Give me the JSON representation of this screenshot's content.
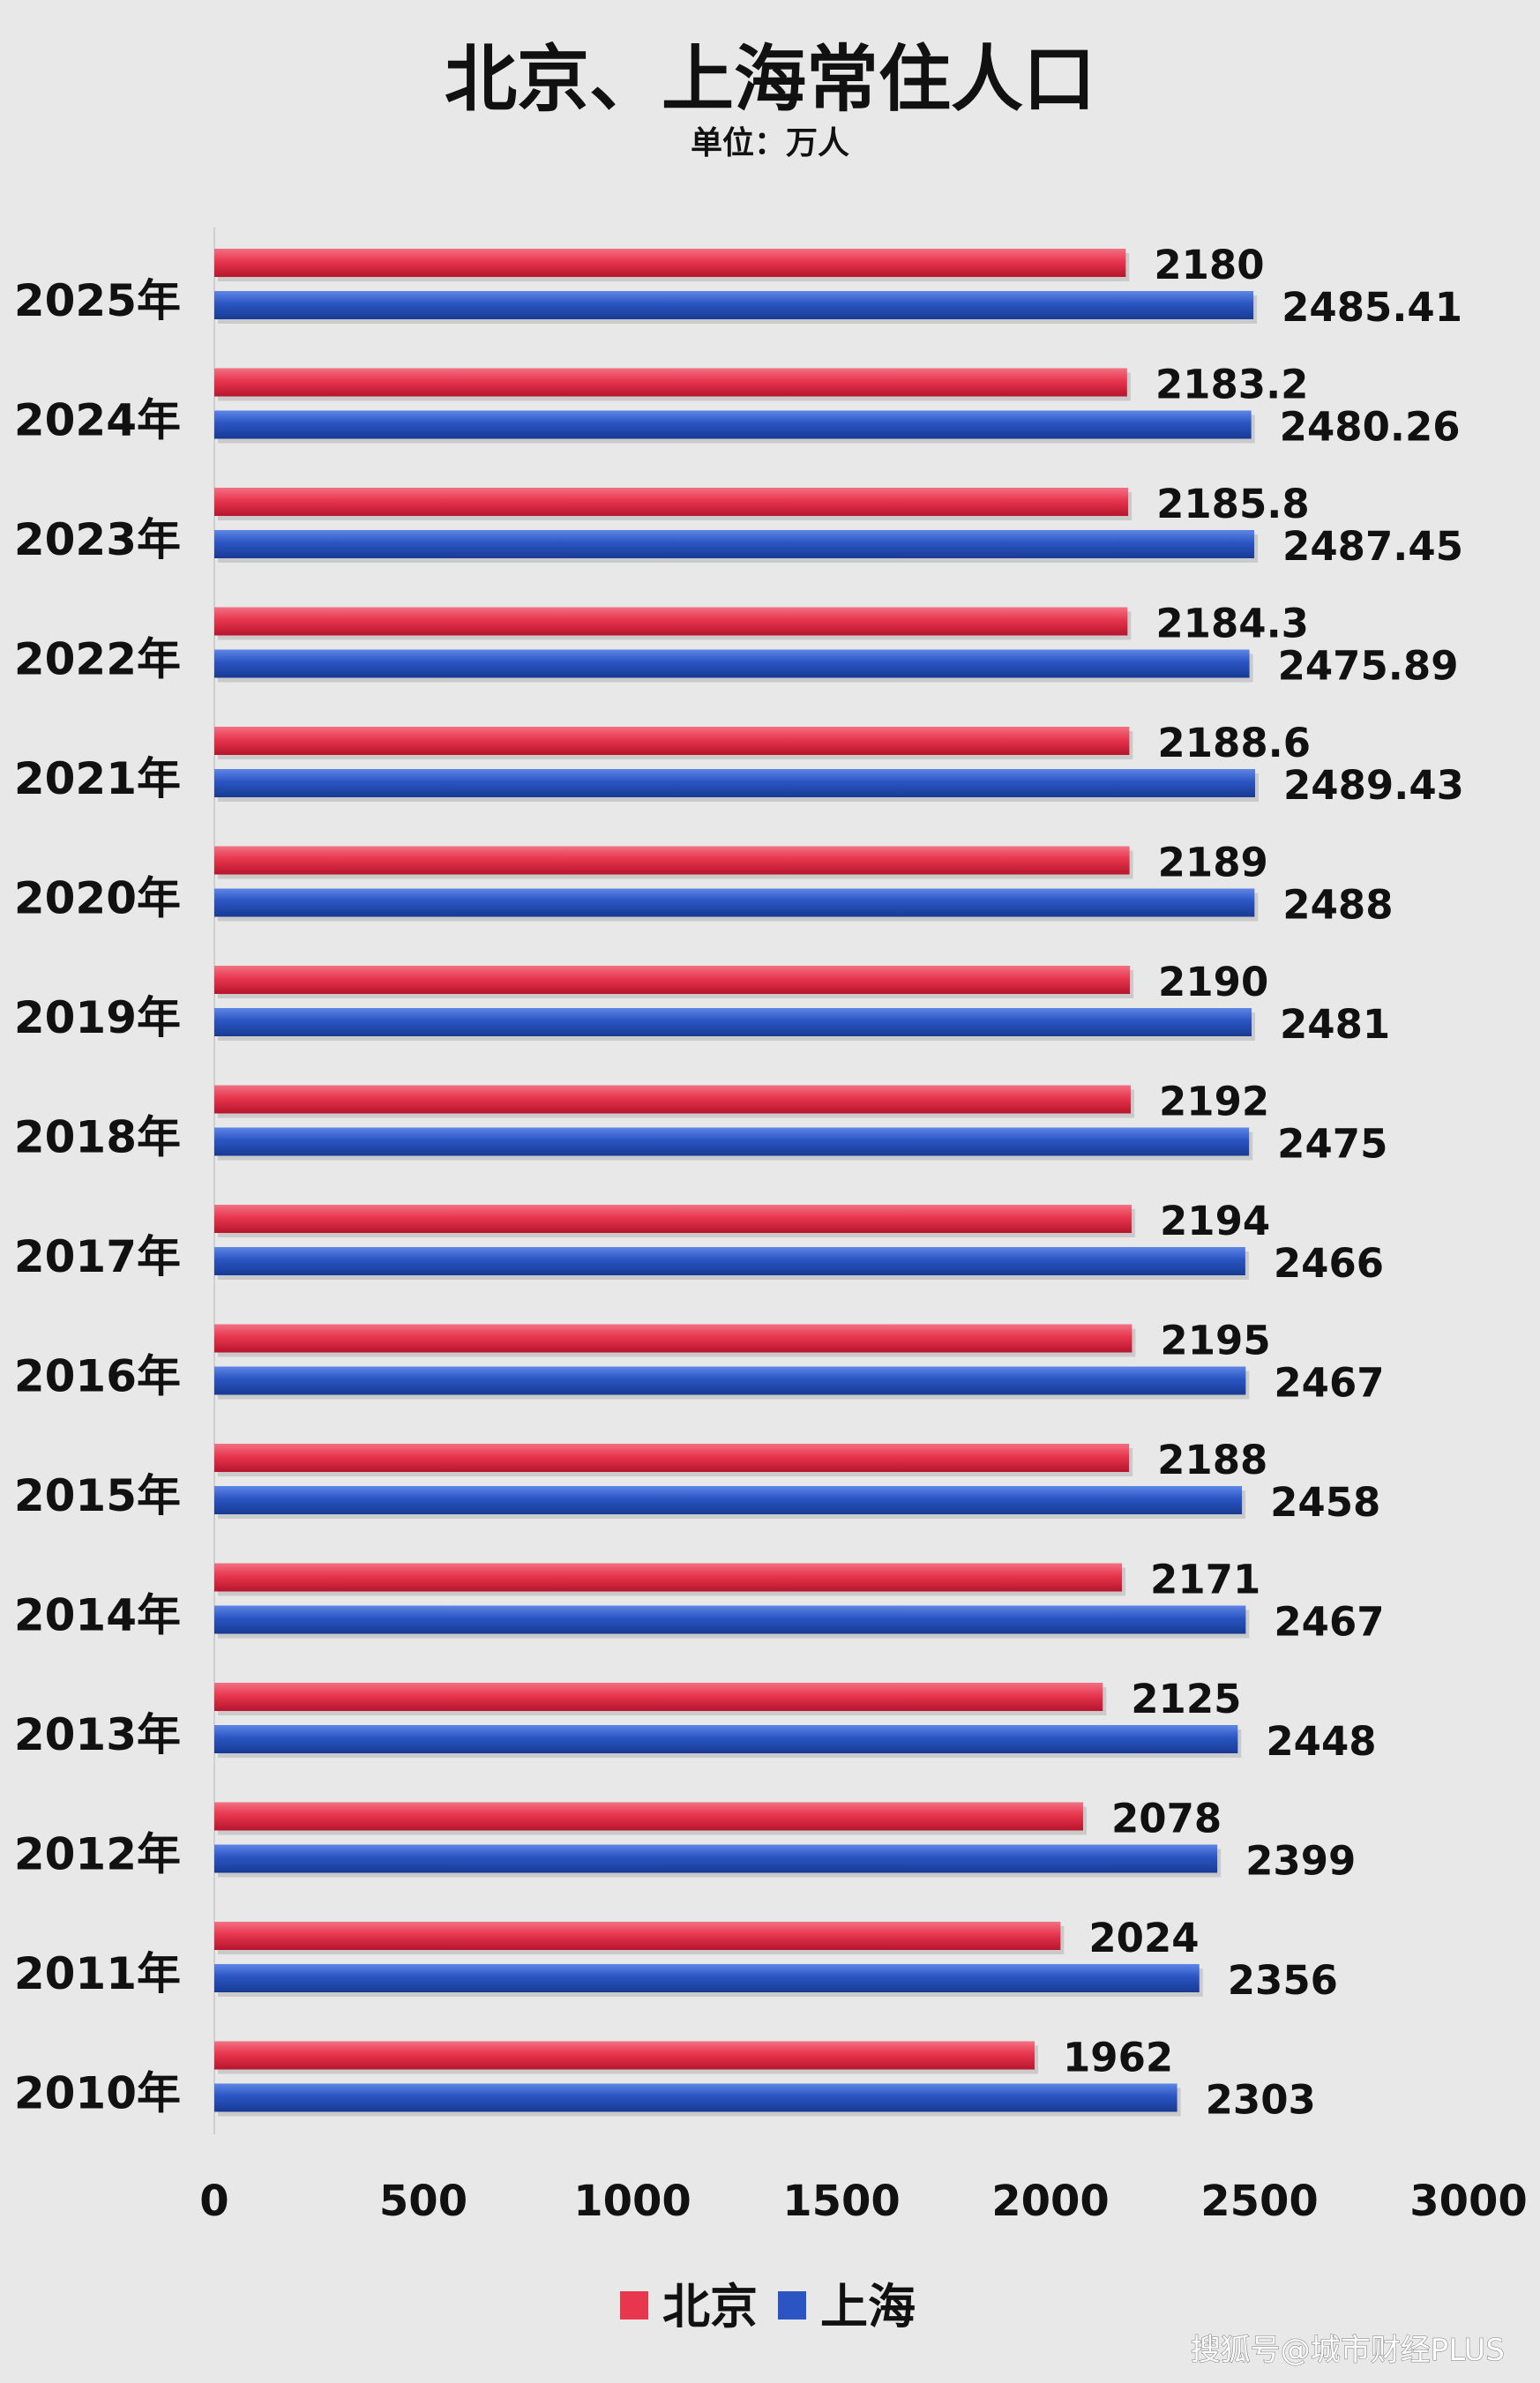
{
  "chart_data": {
    "type": "bar",
    "orientation": "horizontal",
    "title": "北京、上海常住人口",
    "subtitle": "单位：万人",
    "categories": [
      "2025年",
      "2024年",
      "2023年",
      "2022年",
      "2021年",
      "2020年",
      "2019年",
      "2018年",
      "2017年",
      "2016年",
      "2015年",
      "2014年",
      "2013年",
      "2012年",
      "2011年",
      "2010年"
    ],
    "series": [
      {
        "name": "北京",
        "color": "#e8364e",
        "values": [
          2180,
          2183.2,
          2185.8,
          2184.3,
          2188.6,
          2189,
          2190,
          2192,
          2194,
          2195,
          2188,
          2171,
          2125,
          2078,
          2024,
          1962
        ],
        "labels": [
          "2180",
          "2183.2",
          "2185.8",
          "2184.3",
          "2188.6",
          "2189",
          "2190",
          "2192",
          "2194",
          "2195",
          "2188",
          "2171",
          "2125",
          "2078",
          "2024",
          "1962"
        ]
      },
      {
        "name": "上海",
        "color": "#2a55c2",
        "values": [
          2485.41,
          2480.26,
          2487.45,
          2475.89,
          2489.43,
          2488,
          2481,
          2475,
          2466,
          2467,
          2458,
          2467,
          2448,
          2399,
          2356,
          2303
        ],
        "labels": [
          "2485.41",
          "2480.26",
          "2487.45",
          "2475.89",
          "2489.43",
          "2488",
          "2481",
          "2475",
          "2466",
          "2467",
          "2458",
          "2467",
          "2448",
          "2399",
          "2356",
          "2303"
        ]
      }
    ],
    "xlim": [
      0,
      3000
    ],
    "xticks": [
      "0",
      "500",
      "1000",
      "1500",
      "2000",
      "2500",
      "3000"
    ],
    "grid": false,
    "legend_position": "bottom"
  },
  "watermark": "搜狐号@城市财经PLUS"
}
